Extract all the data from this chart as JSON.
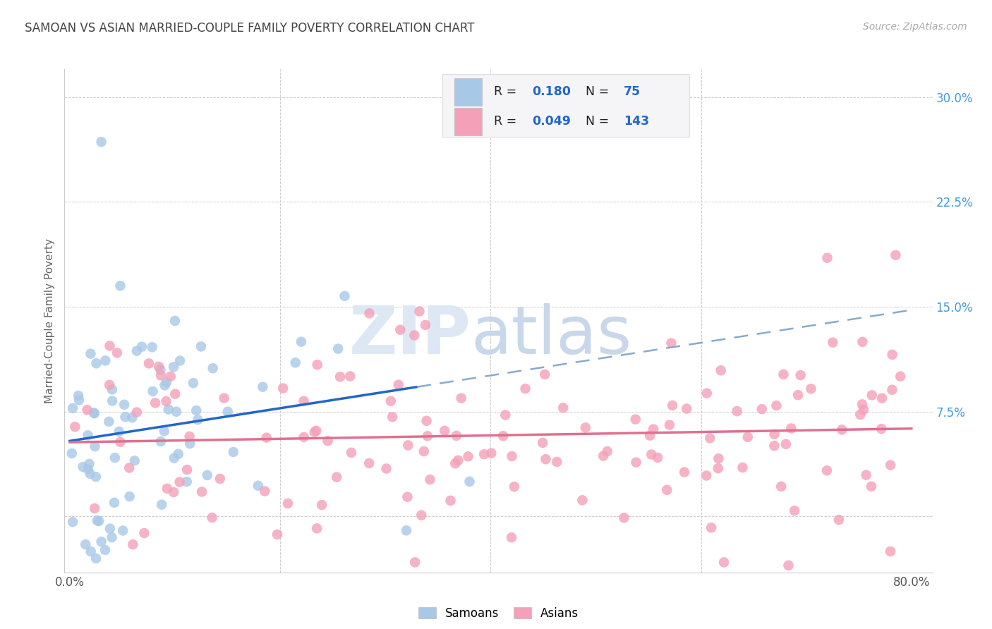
{
  "title": "SAMOAN VS ASIAN MARRIED-COUPLE FAMILY POVERTY CORRELATION CHART",
  "source": "Source: ZipAtlas.com",
  "ylabel": "Married-Couple Family Poverty",
  "xlim": [
    -0.005,
    0.82
  ],
  "ylim": [
    -0.04,
    0.32
  ],
  "yticks": [
    0.0,
    0.075,
    0.15,
    0.225,
    0.3
  ],
  "ytick_labels": [
    "",
    "7.5%",
    "15.0%",
    "22.5%",
    "30.0%"
  ],
  "xticks": [
    0.0,
    0.2,
    0.4,
    0.6,
    0.8
  ],
  "xtick_labels": [
    "0.0%",
    "",
    "",
    "",
    "80.0%"
  ],
  "samoan_color": "#a8c8e8",
  "asian_color": "#f4a0b8",
  "samoan_R": 0.18,
  "samoan_N": 75,
  "asian_R": 0.049,
  "asian_N": 143,
  "legend_label_samoan": "Samoans",
  "legend_label_asian": "Asians",
  "background_color": "#ffffff",
  "grid_color": "#cccccc",
  "title_color": "#444444",
  "right_tick_color": "#4499dd",
  "blue_line_color": "#2266cc",
  "blue_dash_color": "#88aacc",
  "pink_line_color": "#e07090",
  "legend_face_color": "#f5f5f8",
  "legend_edge_color": "#dddddd",
  "r_label_color": "#000000",
  "n_value_color": "#2266cc",
  "watermark_zip_color": "#dde8f4",
  "watermark_atlas_color": "#c8d8ea"
}
